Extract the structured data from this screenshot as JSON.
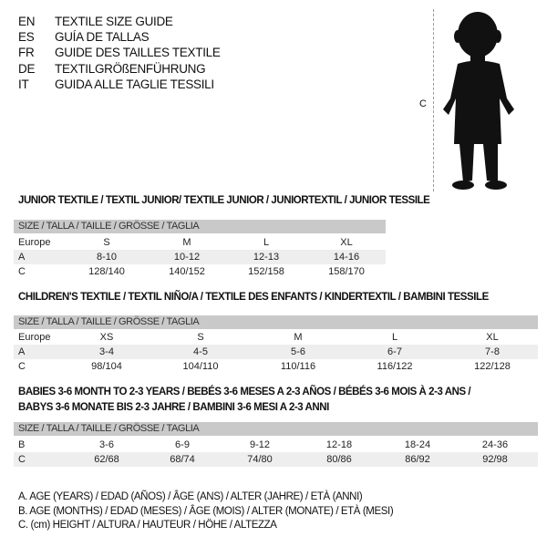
{
  "languages": [
    {
      "code": "EN",
      "text": "TEXTILE SIZE GUIDE"
    },
    {
      "code": "ES",
      "text": "GUÍA DE TALLAS"
    },
    {
      "code": "FR",
      "text": "GUIDE DES TAILLES TEXTILE"
    },
    {
      "code": "DE",
      "text": "TEXTILGRÖßENFÜHRUNG"
    },
    {
      "code": "IT",
      "text": "GUIDA ALLE TAGLIE TESSILI"
    }
  ],
  "figure": {
    "measure_label": "C",
    "icon": "child-silhouette"
  },
  "tables": [
    {
      "title": "JUNIOR TEXTILE / TEXTIL JUNIOR/ TEXTILE JUNIOR / JUNIORTEXTIL / JUNIOR TESSILE",
      "header": "SIZE / TALLA / TAILLE / GRÖSSE / TAGLIA",
      "rows": [
        {
          "label": "Europe",
          "cells": [
            "S",
            "M",
            "L",
            "XL"
          ]
        },
        {
          "label": "A",
          "cells": [
            "8-10",
            "10-12",
            "12-13",
            "14-16"
          ]
        },
        {
          "label": "C",
          "cells": [
            "128/140",
            "140/152",
            "152/158",
            "158/170"
          ]
        }
      ]
    },
    {
      "title": "CHILDREN'S TEXTILE / TEXTIL NIÑO/A / TEXTILE DES ENFANTS / KINDERTEXTIL / BAMBINI TESSILE",
      "header": "SIZE / TALLA / TAILLE / GRÖSSE / TAGLIA",
      "rows": [
        {
          "label": "Europe",
          "cells": [
            "XS",
            "S",
            "M",
            "L",
            "XL"
          ]
        },
        {
          "label": "A",
          "cells": [
            "3-4",
            "4-5",
            "5-6",
            "6-7",
            "7-8"
          ]
        },
        {
          "label": "C",
          "cells": [
            "98/104",
            "104/110",
            "110/116",
            "116/122",
            "122/128"
          ]
        }
      ]
    },
    {
      "title": "BABIES 3-6 MONTH TO 2-3 YEARS / BEBÉS 3-6 MESES A 2-3 AÑOS / BÉBÉS 3-6 MOIS À 2-3 ANS /",
      "title2": "BABYS 3-6 MONATE BIS 2-3 JAHRE / BAMBINI 3-6 MESI A 2-3 ANNI",
      "header": "SIZE / TALLA / TAILLE / GRÖSSE / TAGLIA",
      "rows": [
        {
          "label": "B",
          "cells": [
            "3-6",
            "6-9",
            "9-12",
            "12-18",
            "18-24",
            "24-36"
          ]
        },
        {
          "label": "C",
          "cells": [
            "62/68",
            "68/74",
            "74/80",
            "80/86",
            "86/92",
            "92/98"
          ]
        }
      ]
    }
  ],
  "notes": [
    "A. AGE (YEARS) / EDAD (AÑOS) / ÂGE (ANS) / ALTER (JAHRE) / ETÀ (ANNI)",
    "B. AGE (MONTHS) / EDAD (MESES) / ÂGE (MOIS) / ALTER (MONATE) / ETÀ (MESI)",
    "C. (cm) HEIGHT / ALTURA / HAUTEUR / HÖHE / ALTEZZA"
  ]
}
